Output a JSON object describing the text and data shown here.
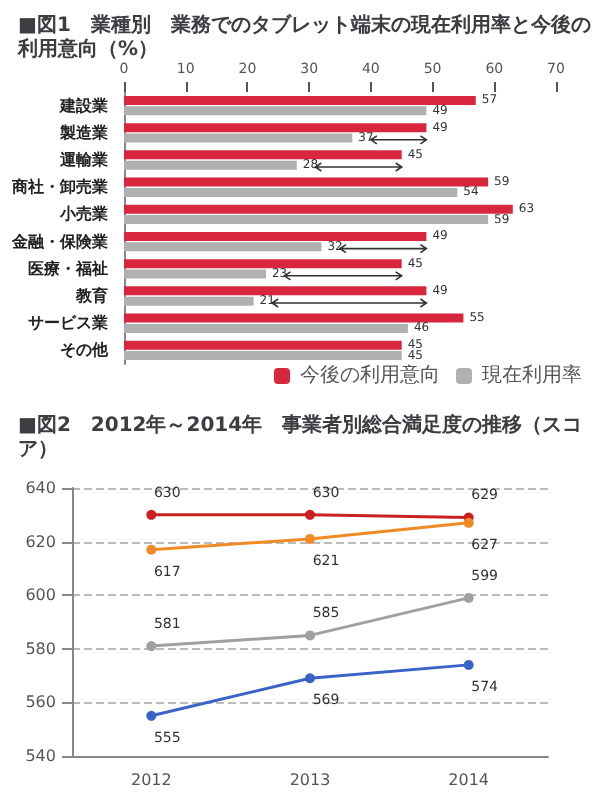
{
  "chart_data": [
    {
      "type": "bar",
      "orientation": "horizontal",
      "title": "■図1　業種別　業務でのタブレット端末の現在利用率と今後の利用意向（%）",
      "categories": [
        "建設業",
        "製造業",
        "運輸業",
        "商社・卸売業",
        "小売業",
        "金融・保険業",
        "医療・福祉",
        "教育",
        "サービス業",
        "その他"
      ],
      "series": [
        {
          "name": "今後の利用意向",
          "color": "#d7263d",
          "values": [
            57,
            49,
            45,
            59,
            63,
            49,
            45,
            49,
            55,
            45
          ]
        },
        {
          "name": "現在利用率",
          "color": "#b0b0b0",
          "values": [
            49,
            37,
            28,
            54,
            59,
            32,
            23,
            21,
            46,
            45
          ]
        }
      ],
      "xlim": [
        0,
        70
      ],
      "xticks": [
        0,
        10,
        20,
        30,
        40,
        50,
        60,
        70
      ],
      "grid": false,
      "legend": "bottom right",
      "data_labels": true
    },
    {
      "type": "line",
      "title": "■図2　2012年～2014年　事業者別総合満足度の推移（スコア）",
      "categories": [
        "2012",
        "2013",
        "2014"
      ],
      "series": [
        {
          "color": "#cc1f1f",
          "values": [
            630,
            630,
            629
          ]
        },
        {
          "color": "#f08a24",
          "values": [
            617,
            621,
            627
          ]
        },
        {
          "color": "#a0a0a0",
          "values": [
            581,
            585,
            599
          ]
        },
        {
          "color": "#3a63c8",
          "values": [
            555,
            569,
            574
          ]
        }
      ],
      "ylim": [
        540,
        640
      ],
      "yticks": [
        540,
        560,
        580,
        600,
        620,
        640
      ],
      "grid": "y",
      "marker": "circle",
      "line_style": "solid",
      "data_labels": true,
      "legend": false
    }
  ]
}
